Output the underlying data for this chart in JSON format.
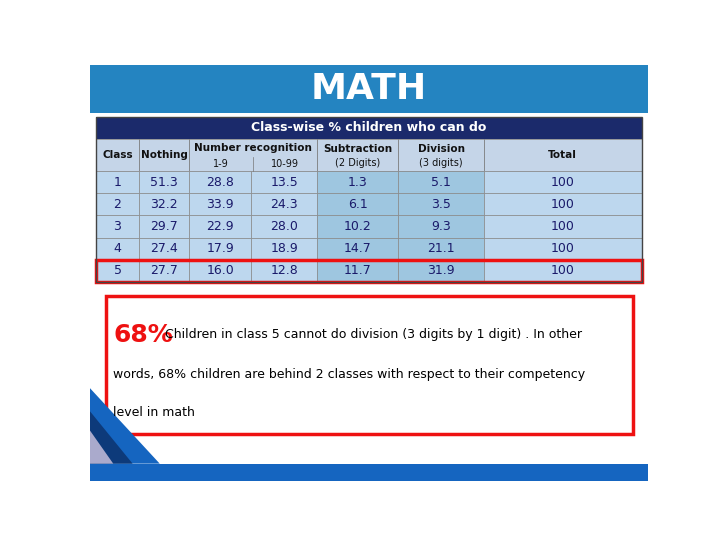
{
  "title": "MATH",
  "title_bg": "#2484C1",
  "title_color": "#FFFFFF",
  "table_header_main": "Class-wise % children who can do",
  "table_header_bg": "#1B2A6B",
  "table_header_color": "#FFFFFF",
  "rows": [
    [
      1,
      51.3,
      28.8,
      13.5,
      1.3,
      5.1,
      100
    ],
    [
      2,
      32.2,
      33.9,
      24.3,
      6.1,
      3.5,
      100
    ],
    [
      3,
      29.7,
      22.9,
      28.0,
      10.2,
      9.3,
      100
    ],
    [
      4,
      27.4,
      17.9,
      18.9,
      14.7,
      21.1,
      100
    ],
    [
      5,
      27.7,
      16.0,
      12.8,
      11.7,
      31.9,
      100
    ]
  ],
  "row_bg": "#BDD7EE",
  "header_bg": "#C5D5E8",
  "highlight_color": "#EE1111",
  "note_percentage": "68%",
  "note_percentage_color": "#EE1111",
  "note_line1": " Children in class 5 cannot do division (3 digits by 1 digit) . In other",
  "note_line2": "words, 68% children are behind 2 classes with respect to their competency",
  "note_line3": "level in math",
  "note_box_color": "#EE1111",
  "note_bg": "#FFFFFF",
  "bg_color": "#FFFFFF",
  "blue_bar_color": "#1565C0",
  "dark_blue": "#0D3A7A"
}
